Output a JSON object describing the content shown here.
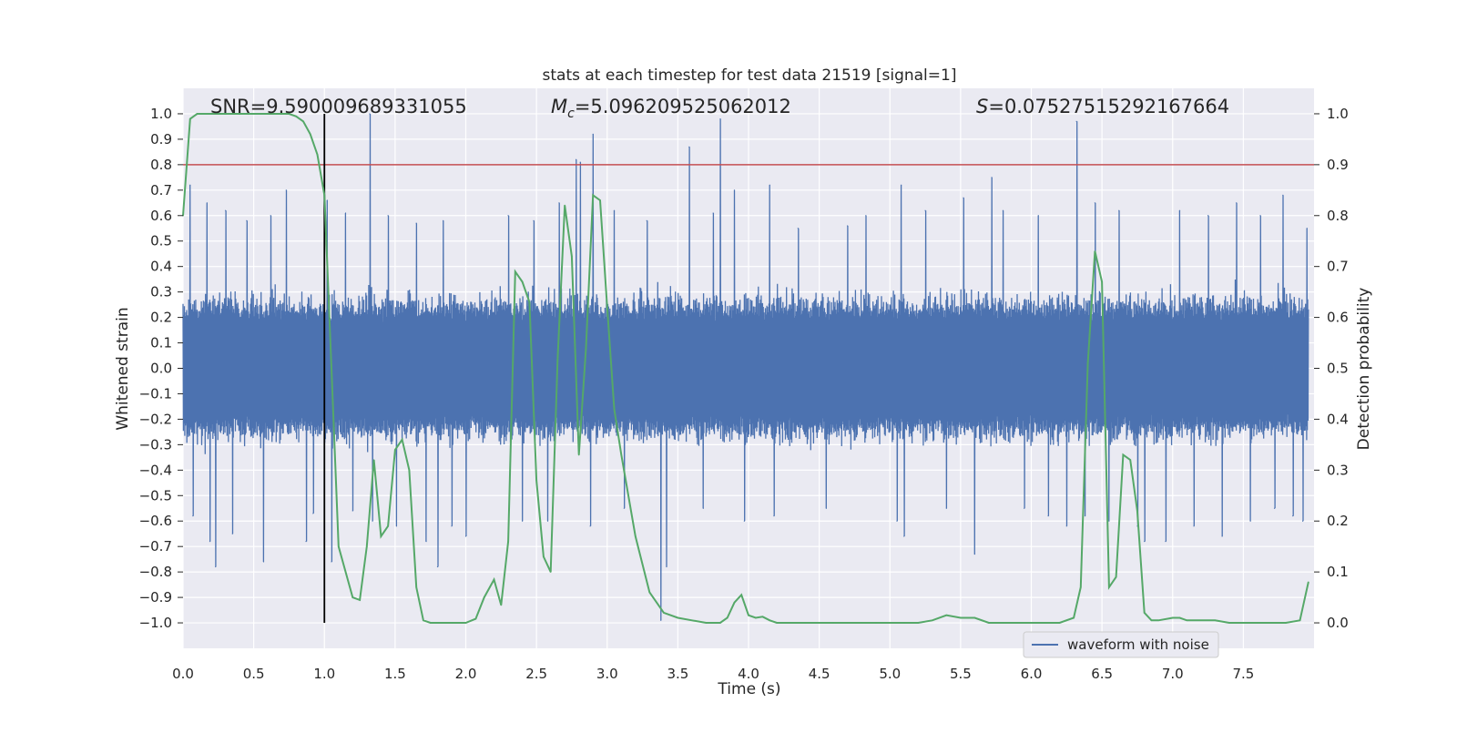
{
  "chart_data": {
    "type": "line",
    "title": "stats at each timestep for test data 21519 [signal=1]",
    "xlabel": "Time (s)",
    "ylabel": "Whitened strain",
    "y2label": "Detection probability",
    "xlim": [
      0.0,
      8.0
    ],
    "ylim": [
      -1.1,
      1.1
    ],
    "y2lim": [
      -0.05,
      1.05
    ],
    "xticks": [
      0.0,
      0.5,
      1.0,
      1.5,
      2.0,
      2.5,
      3.0,
      3.5,
      4.0,
      4.5,
      5.0,
      5.5,
      6.0,
      6.5,
      7.0,
      7.5
    ],
    "xtick_labels": [
      "0.0",
      "0.5",
      "1.0",
      "1.5",
      "2.0",
      "2.5",
      "3.0",
      "3.5",
      "4.0",
      "4.5",
      "5.0",
      "5.5",
      "6.0",
      "6.5",
      "7.0",
      "7.5"
    ],
    "yticks": [
      1.0,
      0.9,
      0.8,
      0.7,
      0.6,
      0.5,
      0.4,
      0.3,
      0.2,
      0.1,
      0.0,
      -0.1,
      -0.2,
      -0.3,
      -0.4,
      -0.5,
      -0.6,
      -0.7,
      -0.8,
      -0.9,
      -1.0
    ],
    "ytick_labels": [
      "1.0",
      "0.9",
      "0.8",
      "0.7",
      "0.6",
      "0.5",
      "0.4",
      "0.3",
      "0.2",
      "0.1",
      "0.0",
      "−0.1",
      "−0.2",
      "−0.3",
      "−0.4",
      "−0.5",
      "−0.6",
      "−0.7",
      "−0.8",
      "−0.9",
      "−1.0"
    ],
    "y2ticks": [
      1.0,
      0.9,
      0.8,
      0.7,
      0.6,
      0.5,
      0.4,
      0.3,
      0.2,
      0.1,
      0.0
    ],
    "y2tick_labels": [
      "1.0",
      "0.9",
      "0.8",
      "0.7",
      "0.6",
      "0.5",
      "0.4",
      "0.3",
      "0.2",
      "0.1",
      "0.0"
    ],
    "grid": true,
    "legend_position": "lower right",
    "annotations": {
      "snr": "SNR=9.590009689331055",
      "mc_symbol": "M",
      "mc_sub": "c",
      "mc_value": "=5.096209525062012",
      "s_symbol": "S",
      "s_value": "=0.07527515292167664"
    },
    "threshold": 0.8,
    "vline_x": 1.0,
    "vline_range": [
      -1.0,
      1.0
    ],
    "waveform": {
      "name": "waveform with noise",
      "sample_rate": 2048,
      "duration": 8.0,
      "typical_envelope": 0.38,
      "peaks": [
        {
          "x": 0.05,
          "y": 0.72
        },
        {
          "x": 0.07,
          "y": -0.58
        },
        {
          "x": 0.17,
          "y": 0.65
        },
        {
          "x": 0.19,
          "y": -0.68
        },
        {
          "x": 0.23,
          "y": -0.78
        },
        {
          "x": 0.3,
          "y": 0.62
        },
        {
          "x": 0.35,
          "y": -0.65
        },
        {
          "x": 0.45,
          "y": 0.58
        },
        {
          "x": 0.57,
          "y": -0.76
        },
        {
          "x": 0.62,
          "y": 0.6
        },
        {
          "x": 0.73,
          "y": 0.7
        },
        {
          "x": 0.87,
          "y": -0.68
        },
        {
          "x": 0.92,
          "y": -0.57
        },
        {
          "x": 1.02,
          "y": 0.66
        },
        {
          "x": 1.05,
          "y": -0.76
        },
        {
          "x": 1.15,
          "y": 0.61
        },
        {
          "x": 1.2,
          "y": -0.56
        },
        {
          "x": 1.32,
          "y": 1.0
        },
        {
          "x": 1.34,
          "y": -0.6
        },
        {
          "x": 1.45,
          "y": 0.6
        },
        {
          "x": 1.51,
          "y": -0.62
        },
        {
          "x": 1.65,
          "y": 0.57
        },
        {
          "x": 1.72,
          "y": -0.68
        },
        {
          "x": 1.8,
          "y": -0.78
        },
        {
          "x": 1.84,
          "y": 0.58
        },
        {
          "x": 1.9,
          "y": -0.62
        },
        {
          "x": 2.0,
          "y": -0.66
        },
        {
          "x": 2.3,
          "y": 0.6
        },
        {
          "x": 2.4,
          "y": -0.6
        },
        {
          "x": 2.48,
          "y": 0.58
        },
        {
          "x": 2.58,
          "y": -0.6
        },
        {
          "x": 2.66,
          "y": 0.65
        },
        {
          "x": 2.78,
          "y": 0.82
        },
        {
          "x": 2.81,
          "y": 0.81
        },
        {
          "x": 2.9,
          "y": 0.92
        },
        {
          "x": 2.88,
          "y": -0.62
        },
        {
          "x": 3.05,
          "y": 0.62
        },
        {
          "x": 3.12,
          "y": -0.55
        },
        {
          "x": 3.28,
          "y": 0.58
        },
        {
          "x": 3.38,
          "y": -0.99
        },
        {
          "x": 3.42,
          "y": -0.78
        },
        {
          "x": 3.58,
          "y": 0.87
        },
        {
          "x": 3.68,
          "y": -0.55
        },
        {
          "x": 3.75,
          "y": 0.61
        },
        {
          "x": 3.8,
          "y": 0.98
        },
        {
          "x": 3.9,
          "y": 0.7
        },
        {
          "x": 3.97,
          "y": -0.6
        },
        {
          "x": 4.15,
          "y": 0.72
        },
        {
          "x": 4.18,
          "y": -0.58
        },
        {
          "x": 4.35,
          "y": 0.55
        },
        {
          "x": 4.55,
          "y": -0.55
        },
        {
          "x": 4.7,
          "y": 0.56
        },
        {
          "x": 4.83,
          "y": 0.6
        },
        {
          "x": 5.05,
          "y": -0.6
        },
        {
          "x": 5.08,
          "y": 0.72
        },
        {
          "x": 5.1,
          "y": -0.66
        },
        {
          "x": 5.25,
          "y": 0.62
        },
        {
          "x": 5.4,
          "y": -0.55
        },
        {
          "x": 5.52,
          "y": 0.67
        },
        {
          "x": 5.6,
          "y": -0.73
        },
        {
          "x": 5.72,
          "y": 0.75
        },
        {
          "x": 5.8,
          "y": 0.62
        },
        {
          "x": 5.95,
          "y": -0.55
        },
        {
          "x": 6.05,
          "y": 0.6
        },
        {
          "x": 6.12,
          "y": -0.58
        },
        {
          "x": 6.25,
          "y": -0.62
        },
        {
          "x": 6.32,
          "y": 0.97
        },
        {
          "x": 6.38,
          "y": -0.58
        },
        {
          "x": 6.45,
          "y": 0.65
        },
        {
          "x": 6.55,
          "y": -0.6
        },
        {
          "x": 6.62,
          "y": 0.62
        },
        {
          "x": 6.75,
          "y": -0.62
        },
        {
          "x": 6.8,
          "y": -0.68
        },
        {
          "x": 6.95,
          "y": -0.68
        },
        {
          "x": 7.05,
          "y": 0.62
        },
        {
          "x": 7.15,
          "y": -0.62
        },
        {
          "x": 7.25,
          "y": 0.6
        },
        {
          "x": 7.35,
          "y": -0.66
        },
        {
          "x": 7.45,
          "y": 0.65
        },
        {
          "x": 7.55,
          "y": -0.6
        },
        {
          "x": 7.62,
          "y": 0.6
        },
        {
          "x": 7.72,
          "y": -0.55
        },
        {
          "x": 7.78,
          "y": 0.68
        },
        {
          "x": 7.85,
          "y": -0.58
        },
        {
          "x": 7.92,
          "y": -0.6
        },
        {
          "x": 7.95,
          "y": 0.55
        }
      ]
    },
    "probability": {
      "x": [
        0.0,
        0.05,
        0.1,
        0.2,
        0.3,
        0.4,
        0.5,
        0.6,
        0.7,
        0.75,
        0.8,
        0.85,
        0.9,
        0.95,
        1.0,
        1.05,
        1.1,
        1.2,
        1.25,
        1.3,
        1.35,
        1.4,
        1.45,
        1.5,
        1.55,
        1.6,
        1.65,
        1.7,
        1.75,
        1.8,
        1.9,
        2.0,
        2.07,
        2.13,
        2.2,
        2.25,
        2.3,
        2.35,
        2.4,
        2.45,
        2.5,
        2.55,
        2.6,
        2.65,
        2.7,
        2.75,
        2.8,
        2.85,
        2.9,
        2.95,
        3.0,
        3.05,
        3.1,
        3.2,
        3.3,
        3.4,
        3.5,
        3.6,
        3.7,
        3.8,
        3.85,
        3.9,
        3.95,
        4.0,
        4.05,
        4.1,
        4.15,
        4.2,
        4.3,
        4.4,
        4.5,
        4.6,
        4.7,
        4.8,
        4.9,
        5.0,
        5.1,
        5.2,
        5.3,
        5.4,
        5.5,
        5.6,
        5.7,
        5.8,
        5.9,
        6.0,
        6.1,
        6.2,
        6.3,
        6.35,
        6.4,
        6.45,
        6.5,
        6.55,
        6.6,
        6.65,
        6.7,
        6.75,
        6.8,
        6.85,
        6.9,
        7.0,
        7.05,
        7.1,
        7.2,
        7.3,
        7.4,
        7.5,
        7.6,
        7.7,
        7.8,
        7.9,
        7.96
      ],
      "y": [
        0.8,
        0.99,
        1.0,
        1.0,
        1.0,
        1.0,
        1.0,
        1.0,
        1.0,
        1.0,
        0.995,
        0.985,
        0.96,
        0.92,
        0.84,
        0.5,
        0.15,
        0.05,
        0.045,
        0.15,
        0.32,
        0.17,
        0.19,
        0.34,
        0.36,
        0.3,
        0.07,
        0.005,
        0.0,
        0.0,
        0.0,
        0.0,
        0.008,
        0.05,
        0.085,
        0.035,
        0.16,
        0.69,
        0.67,
        0.63,
        0.28,
        0.13,
        0.1,
        0.52,
        0.82,
        0.72,
        0.33,
        0.54,
        0.84,
        0.83,
        0.62,
        0.42,
        0.33,
        0.17,
        0.06,
        0.02,
        0.01,
        0.005,
        0.0,
        0.0,
        0.01,
        0.04,
        0.055,
        0.015,
        0.01,
        0.012,
        0.005,
        0.0,
        0.0,
        0.0,
        0.0,
        0.0,
        0.0,
        0.0,
        0.0,
        0.0,
        0.0,
        0.0,
        0.005,
        0.015,
        0.01,
        0.01,
        0.0,
        0.0,
        0.0,
        0.0,
        0.0,
        0.0,
        0.01,
        0.07,
        0.51,
        0.73,
        0.67,
        0.07,
        0.09,
        0.33,
        0.32,
        0.22,
        0.02,
        0.005,
        0.005,
        0.01,
        0.01,
        0.005,
        0.005,
        0.005,
        0.0,
        0.0,
        0.0,
        0.0,
        0.0,
        0.005,
        0.08
      ]
    },
    "colors": {
      "waveform": "#4c72b0",
      "probability": "#55a868",
      "threshold": "#c44e52",
      "vline": "#000000",
      "plot_bg": "#eaeaf2",
      "grid": "#ffffff"
    }
  }
}
